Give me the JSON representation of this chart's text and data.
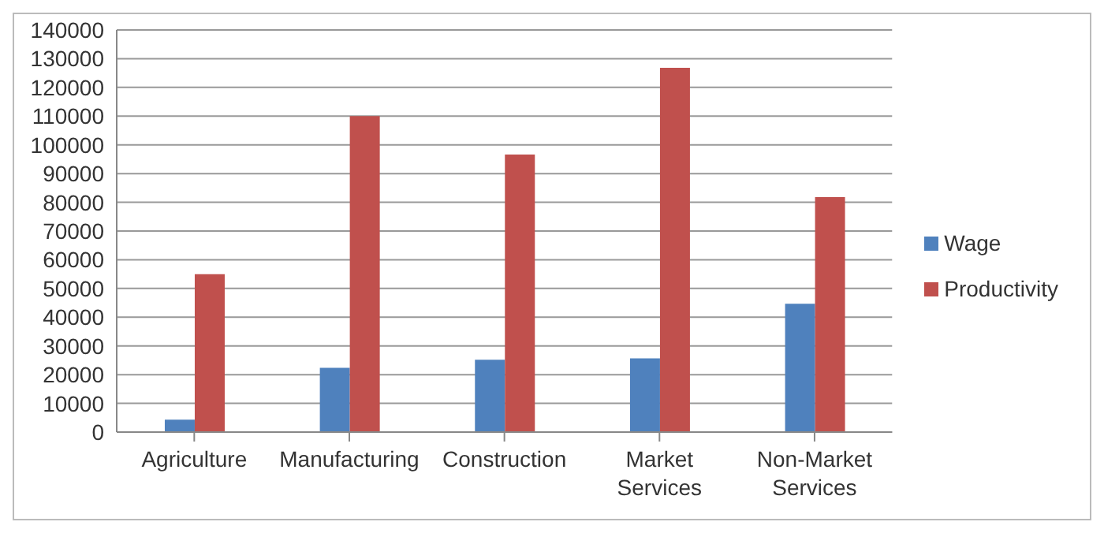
{
  "chart_data": {
    "type": "bar",
    "categories": [
      "Agriculture",
      "Manufacturing",
      "Construction",
      "Market Services",
      "Non-Market Services"
    ],
    "series": [
      {
        "name": "Wage",
        "color": "#4f81bd",
        "values": [
          4300,
          22400,
          25200,
          25700,
          44700
        ]
      },
      {
        "name": "Productivity",
        "color": "#c0504d",
        "values": [
          55000,
          110000,
          96600,
          126800,
          81800
        ]
      }
    ],
    "ylim": [
      0,
      140000
    ],
    "yticks": [
      0,
      10000,
      20000,
      30000,
      40000,
      50000,
      60000,
      70000,
      80000,
      90000,
      100000,
      110000,
      120000,
      130000,
      140000
    ],
    "grid": "y",
    "legend": "right"
  }
}
